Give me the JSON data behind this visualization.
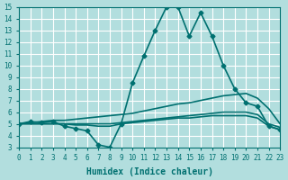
{
  "xlabel": "Humidex (Indice chaleur)",
  "ylabel": "",
  "xlim": [
    0,
    23
  ],
  "ylim": [
    3,
    15
  ],
  "yticks": [
    3,
    4,
    5,
    6,
    7,
    8,
    9,
    10,
    11,
    12,
    13,
    14,
    15
  ],
  "xticks": [
    0,
    1,
    2,
    3,
    4,
    5,
    6,
    7,
    8,
    9,
    10,
    11,
    12,
    13,
    14,
    15,
    16,
    17,
    18,
    19,
    20,
    21,
    22,
    23
  ],
  "bg_color": "#b2dede",
  "grid_color": "#ffffff",
  "line_color": "#007070",
  "lines": [
    {
      "x": [
        0,
        1,
        2,
        3,
        4,
        5,
        6,
        7,
        8,
        9,
        10,
        11,
        12,
        13,
        14,
        15,
        16,
        17,
        18,
        19,
        20,
        21,
        22,
        23
      ],
      "y": [
        5,
        5.2,
        5.1,
        5.2,
        4.8,
        4.6,
        4.4,
        3.2,
        3.0,
        5.0,
        8.5,
        10.8,
        13.0,
        15.0,
        15.0,
        12.5,
        14.5,
        12.5,
        10.0,
        8.0,
        6.8,
        6.5,
        4.8,
        4.5
      ],
      "marker": "D",
      "markersize": 2.5,
      "linewidth": 1.2
    },
    {
      "x": [
        0,
        1,
        2,
        3,
        4,
        5,
        6,
        7,
        8,
        9,
        10,
        11,
        12,
        13,
        14,
        15,
        16,
        17,
        18,
        19,
        20,
        21,
        22,
        23
      ],
      "y": [
        5,
        5.1,
        5.2,
        5.3,
        5.3,
        5.4,
        5.5,
        5.6,
        5.7,
        5.8,
        5.9,
        6.1,
        6.3,
        6.5,
        6.7,
        6.8,
        7.0,
        7.2,
        7.4,
        7.5,
        7.6,
        7.2,
        6.3,
        5.0
      ],
      "marker": null,
      "markersize": 0,
      "linewidth": 1.2
    },
    {
      "x": [
        0,
        1,
        2,
        3,
        4,
        5,
        6,
        7,
        8,
        9,
        10,
        11,
        12,
        13,
        14,
        15,
        16,
        17,
        18,
        19,
        20,
        21,
        22,
        23
      ],
      "y": [
        5,
        5.0,
        5.0,
        5.0,
        5.0,
        5.0,
        5.0,
        5.0,
        5.0,
        5.1,
        5.2,
        5.3,
        5.4,
        5.5,
        5.6,
        5.7,
        5.8,
        5.9,
        6.0,
        6.0,
        6.0,
        5.8,
        5.0,
        4.7
      ],
      "marker": null,
      "markersize": 0,
      "linewidth": 1.2
    },
    {
      "x": [
        0,
        1,
        2,
        3,
        4,
        5,
        6,
        7,
        8,
        9,
        10,
        11,
        12,
        13,
        14,
        15,
        16,
        17,
        18,
        19,
        20,
        21,
        22,
        23
      ],
      "y": [
        5,
        5.0,
        5.0,
        5.0,
        5.0,
        4.9,
        4.9,
        4.8,
        4.8,
        5.0,
        5.1,
        5.2,
        5.3,
        5.4,
        5.5,
        5.5,
        5.6,
        5.7,
        5.7,
        5.7,
        5.7,
        5.5,
        4.8,
        4.5
      ],
      "marker": null,
      "markersize": 0,
      "linewidth": 1.2
    }
  ]
}
